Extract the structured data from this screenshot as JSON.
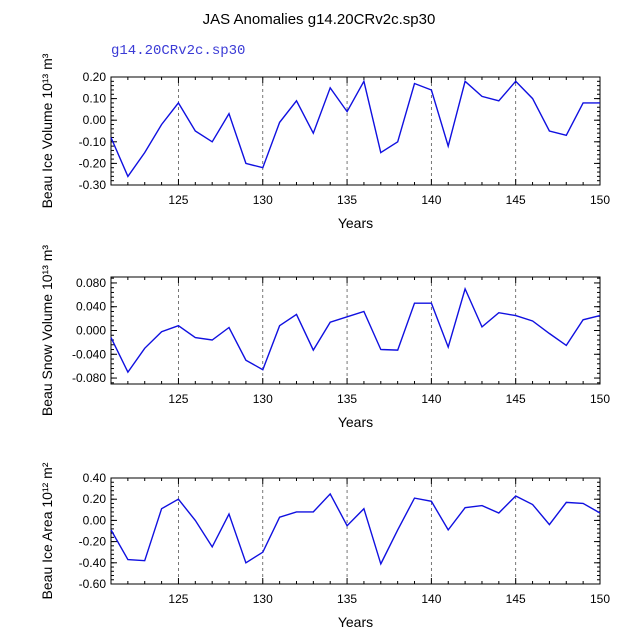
{
  "title": "JAS Anomalies g14.20CRv2c.sp30",
  "chart_data": [
    {
      "type": "line",
      "subtitle": "g14.20CRv2c.sp30",
      "xlabel": "Years",
      "ylabel": "Beau Ice Volume 10¹³ m³",
      "xlim": [
        121,
        150
      ],
      "ylim": [
        -0.3,
        0.2
      ],
      "xticks": [
        125,
        130,
        135,
        140,
        145,
        150
      ],
      "yticks": [
        "-0.30",
        "-0.20",
        "-0.10",
        "0.00",
        "0.10",
        "0.20"
      ],
      "grid": "dashed vertical at x ticks",
      "series": [
        {
          "color": "#1010e0",
          "x": [
            121,
            122,
            123,
            124,
            125,
            126,
            127,
            128,
            129,
            130,
            131,
            132,
            133,
            134,
            135,
            136,
            137,
            138,
            139,
            140,
            141,
            142,
            143,
            144,
            145,
            146,
            147,
            148,
            149,
            150
          ],
          "values": [
            -0.08,
            -0.26,
            -0.15,
            -0.02,
            0.08,
            -0.05,
            -0.1,
            0.03,
            -0.2,
            -0.22,
            -0.01,
            0.09,
            -0.06,
            0.15,
            0.04,
            0.18,
            -0.15,
            -0.1,
            0.17,
            0.14,
            -0.12,
            0.18,
            0.11,
            0.09,
            0.18,
            0.1,
            -0.05,
            -0.07,
            0.08,
            0.08
          ]
        }
      ]
    },
    {
      "type": "line",
      "xlabel": "Years",
      "ylabel": "Beau Snow Volume 10¹³ m³",
      "xlim": [
        121,
        150
      ],
      "ylim": [
        -0.09,
        0.09
      ],
      "xticks": [
        125,
        130,
        135,
        140,
        145,
        150
      ],
      "yticks": [
        "-0.080",
        "-0.040",
        "0.000",
        "0.040",
        "0.080"
      ],
      "ytick_values": [
        -0.08,
        -0.04,
        0.0,
        0.04,
        0.08
      ],
      "grid": "dashed vertical at x ticks",
      "series": [
        {
          "color": "#1010e0",
          "x": [
            121,
            122,
            123,
            124,
            125,
            126,
            127,
            128,
            129,
            130,
            131,
            132,
            133,
            134,
            135,
            136,
            137,
            138,
            139,
            140,
            141,
            142,
            143,
            144,
            145,
            146,
            147,
            148,
            149,
            150
          ],
          "values": [
            -0.012,
            -0.07,
            -0.03,
            -0.002,
            0.008,
            -0.012,
            -0.016,
            0.005,
            -0.05,
            -0.066,
            0.008,
            0.027,
            -0.033,
            0.014,
            0.023,
            0.032,
            -0.032,
            -0.033,
            0.046,
            0.046,
            -0.028,
            0.07,
            0.006,
            0.03,
            0.025,
            0.016,
            -0.005,
            -0.025,
            0.018,
            0.025
          ]
        }
      ]
    },
    {
      "type": "line",
      "xlabel": "Years",
      "ylabel": "Beau Ice Area 10¹² m²",
      "xlim": [
        121,
        150
      ],
      "ylim": [
        -0.6,
        0.4
      ],
      "xticks": [
        125,
        130,
        135,
        140,
        145,
        150
      ],
      "yticks": [
        "-0.60",
        "-0.40",
        "-0.20",
        "0.00",
        "0.20",
        "0.40"
      ],
      "grid": "dashed vertical at x ticks",
      "series": [
        {
          "color": "#1010e0",
          "x": [
            121,
            122,
            123,
            124,
            125,
            126,
            127,
            128,
            129,
            130,
            131,
            132,
            133,
            134,
            135,
            136,
            137,
            138,
            139,
            140,
            141,
            142,
            143,
            144,
            145,
            146,
            147,
            148,
            149,
            150
          ],
          "values": [
            -0.09,
            -0.37,
            -0.38,
            0.11,
            0.2,
            0.0,
            -0.25,
            0.06,
            -0.4,
            -0.3,
            0.03,
            0.08,
            0.08,
            0.25,
            -0.05,
            0.11,
            -0.41,
            -0.09,
            0.21,
            0.18,
            -0.09,
            0.12,
            0.14,
            0.07,
            0.23,
            0.15,
            -0.04,
            0.17,
            0.16,
            0.07
          ]
        }
      ]
    }
  ]
}
